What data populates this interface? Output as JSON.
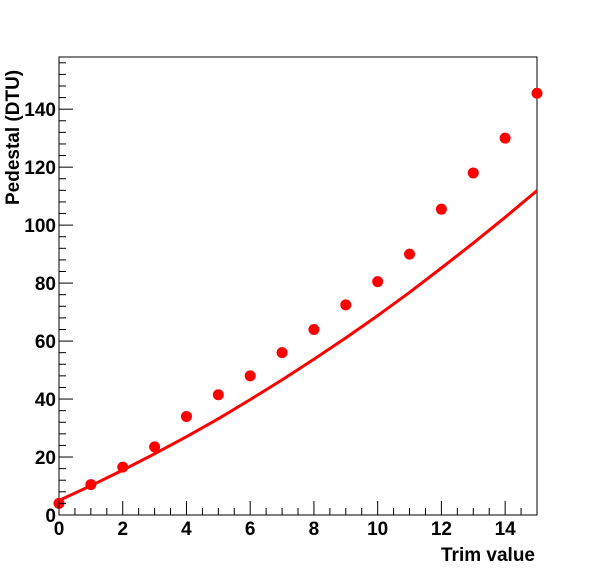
{
  "chart_data": {
    "type": "scatter",
    "title": "",
    "xlabel": "Trim value",
    "ylabel": "Pedestal (DTU)",
    "xlim": [
      0,
      15
    ],
    "ylim": [
      0,
      158
    ],
    "x_ticks": [
      0,
      2,
      4,
      6,
      8,
      10,
      12,
      14
    ],
    "y_ticks": [
      0,
      20,
      40,
      60,
      80,
      100,
      120,
      140
    ],
    "grid": false,
    "legend": "none",
    "colors": {
      "points": "#ff0000",
      "fit": "#ff0000",
      "axis": "#000000"
    },
    "series": [
      {
        "type": "scatter",
        "x": [
          0,
          1,
          2,
          3,
          4,
          5,
          6,
          7,
          8,
          9,
          10,
          11,
          12,
          13,
          14,
          15
        ],
        "values": [
          4,
          10.5,
          16.5,
          23.5,
          34,
          41.5,
          48,
          56,
          64,
          72.5,
          80.5,
          90,
          105.5,
          118,
          130,
          145.5
        ]
      },
      {
        "type": "line",
        "x": [
          0,
          1,
          2,
          3,
          4,
          5,
          6,
          7,
          8,
          9,
          10,
          11,
          12,
          13,
          14,
          15
        ],
        "values": [
          5,
          10.1,
          15.5,
          21.1,
          27.0,
          33.2,
          39.8,
          46.6,
          53.7,
          61.1,
          68.8,
          76.8,
          85.2,
          93.8,
          102.7,
          111.9
        ]
      }
    ]
  }
}
